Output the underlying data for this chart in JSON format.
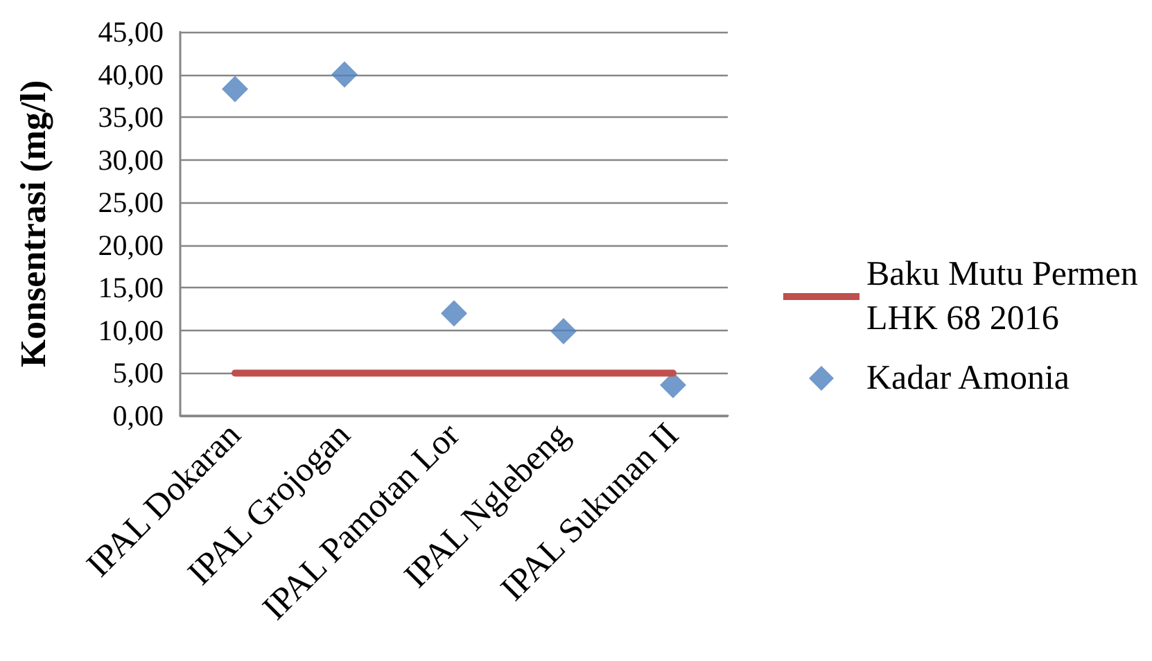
{
  "chart_data": {
    "type": "scatter",
    "ylabel": "Konsentrasi (mg/l)",
    "categories": [
      "IPAL Dokaran",
      "IPAL Grojogan",
      "IPAL Pamotan Lor",
      "IPAL Nglebeng",
      "IPAL Sukunan II"
    ],
    "series": [
      {
        "name": "Baku Mutu Permen LHK 68 2016",
        "type": "line",
        "color": "#c0504d",
        "values": [
          5,
          5,
          5,
          5,
          5
        ],
        "marker": "none"
      },
      {
        "name": "Kadar Amonia",
        "color": "#4f81bd",
        "values": [
          38.3,
          40.0,
          12.0,
          9.9,
          3.6
        ],
        "marker": "diamond"
      }
    ],
    "ylim": [
      0,
      45
    ],
    "yticks": [
      {
        "value": 0,
        "label": "0,00"
      },
      {
        "value": 5,
        "label": "5,00"
      },
      {
        "value": 10,
        "label": "10,00"
      },
      {
        "value": 15,
        "label": "15,00"
      },
      {
        "value": 20,
        "label": "20,00"
      },
      {
        "value": 25,
        "label": "25,00"
      },
      {
        "value": 30,
        "label": "30,00"
      },
      {
        "value": 35,
        "label": "35,00"
      },
      {
        "value": 40,
        "label": "40,00"
      },
      {
        "value": 45,
        "label": "45,00"
      }
    ],
    "grid": "y",
    "legend": "right"
  }
}
